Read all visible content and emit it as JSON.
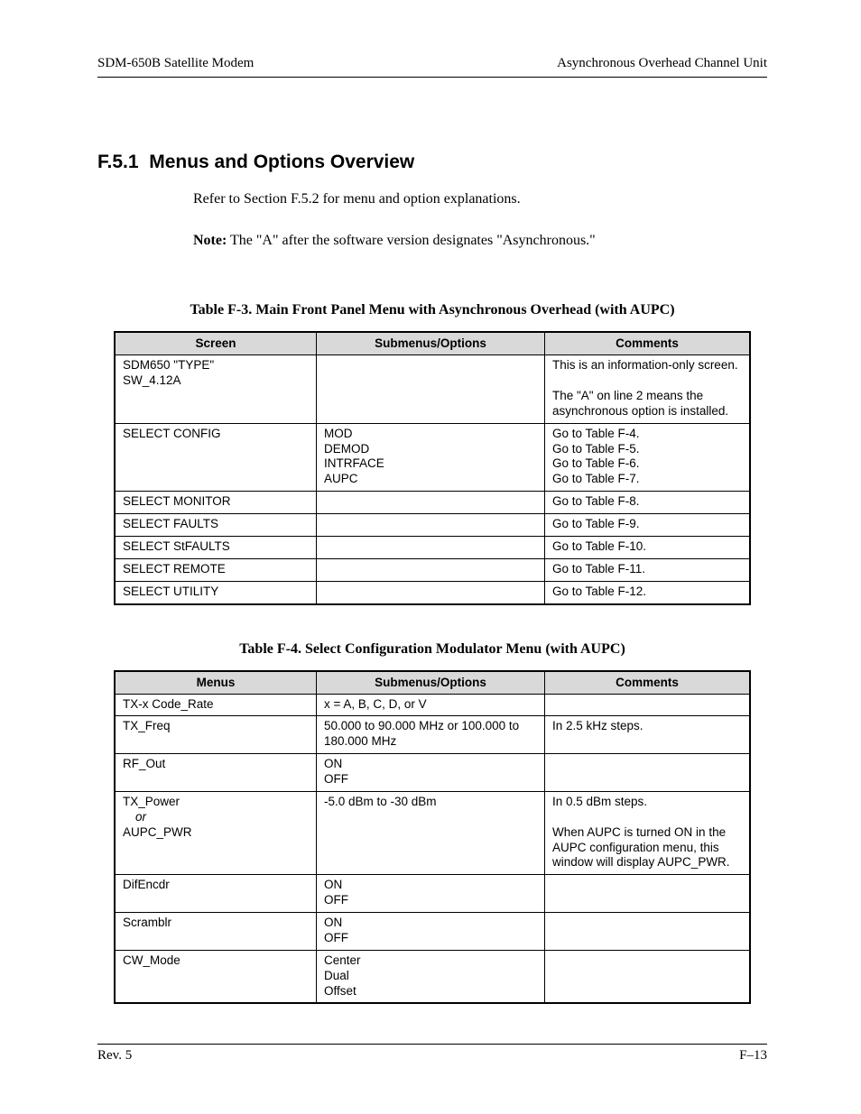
{
  "header": {
    "left": "SDM-650B Satellite Modem",
    "right": "Asynchronous Overhead Channel Unit"
  },
  "section": {
    "number": "F.5.1",
    "title": "Menus and Options Overview"
  },
  "body": {
    "para1": "Refer to Section F.5.2 for menu and option explanations.",
    "note_label": "Note:",
    "note_text": " The \"A\" after the software version designates \"Asynchronous.\""
  },
  "table1": {
    "caption": "Table F-3.  Main Front Panel Menu with Asynchronous Overhead (with AUPC)",
    "headers": [
      "Screen",
      "Submenus/Options",
      "Comments"
    ],
    "rows": [
      {
        "c0": "SDM650 \"TYPE\"\nSW_4.12A",
        "c1": "",
        "c2": "This is an information-only screen.\n\nThe \"A\" on line 2 means the asynchronous option is installed."
      },
      {
        "c0": "SELECT CONFIG",
        "c1": "MOD\nDEMOD\nINTRFACE\nAUPC",
        "c2": "Go to Table F-4.\nGo to Table F-5.\nGo to Table F-6.\nGo to Table F-7."
      },
      {
        "c0": "SELECT MONITOR",
        "c1": "",
        "c2": "Go to Table F-8."
      },
      {
        "c0": "SELECT FAULTS",
        "c1": "",
        "c2": "Go to Table F-9."
      },
      {
        "c0": "SELECT StFAULTS",
        "c1": "",
        "c2": "Go to Table F-10."
      },
      {
        "c0": "SELECT REMOTE",
        "c1": "",
        "c2": "Go to Table F-11."
      },
      {
        "c0": "SELECT UTILITY",
        "c1": "",
        "c2": "Go to Table F-12."
      }
    ]
  },
  "table2": {
    "caption": "Table F-4.  Select Configuration Modulator Menu (with AUPC)",
    "headers": [
      "Menus",
      "Submenus/Options",
      "Comments"
    ],
    "rows": [
      {
        "c0": "TX-x Code_Rate",
        "c1": "x = A, B, C, D, or V",
        "c2": ""
      },
      {
        "c0": "TX_Freq",
        "c1": "50.000 to 90.000 MHz or 100.000 to 180.000 MHz",
        "c2": "In 2.5 kHz steps."
      },
      {
        "c0": "RF_Out",
        "c1": "ON\nOFF",
        "c2": ""
      },
      {
        "c0_html": "TX_Power<br><span class=\"indent-block\">or</span><br>AUPC_PWR",
        "c1": "-5.0 dBm to -30 dBm",
        "c2": "In 0.5 dBm steps.\n\nWhen AUPC is turned ON in the AUPC configuration menu, this window will display AUPC_PWR."
      },
      {
        "c0": "DifEncdr",
        "c1": "ON\nOFF",
        "c2": ""
      },
      {
        "c0": "Scramblr",
        "c1": "ON\nOFF",
        "c2": ""
      },
      {
        "c0": "CW_Mode",
        "c1": "Center\nDual\nOffset",
        "c2": ""
      }
    ]
  },
  "footer": {
    "left": "Rev. 5",
    "right": "F–13"
  }
}
